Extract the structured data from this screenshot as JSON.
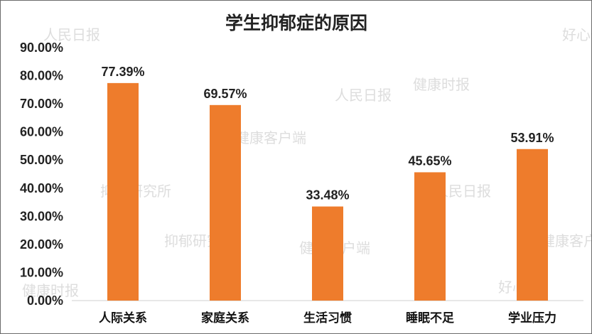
{
  "chart_data": {
    "type": "bar",
    "title": "学生抑郁症的原因",
    "categories": [
      "人际关系",
      "家庭关系",
      "生活习惯",
      "睡眠不足",
      "学业压力"
    ],
    "values": [
      77.39,
      69.57,
      33.48,
      45.65,
      53.91
    ],
    "value_labels": [
      "77.39%",
      "69.57%",
      "33.48%",
      "45.65%",
      "53.91%"
    ],
    "ylim": [
      0,
      90
    ],
    "yticks": [
      "0.00%",
      "10.00%",
      "20.00%",
      "30.00%",
      "40.00%",
      "50.00%",
      "60.00%",
      "70.00%",
      "80.00%",
      "90.00%"
    ],
    "ytick_values": [
      0,
      10,
      20,
      30,
      40,
      50,
      60,
      70,
      80,
      90
    ],
    "bar_color": "#ee7c2c",
    "grid": false,
    "legend": "none"
  },
  "watermarks": [
    "人民日报",
    "健康客户端",
    "健康时报",
    "好心情",
    "抑郁研究所"
  ]
}
